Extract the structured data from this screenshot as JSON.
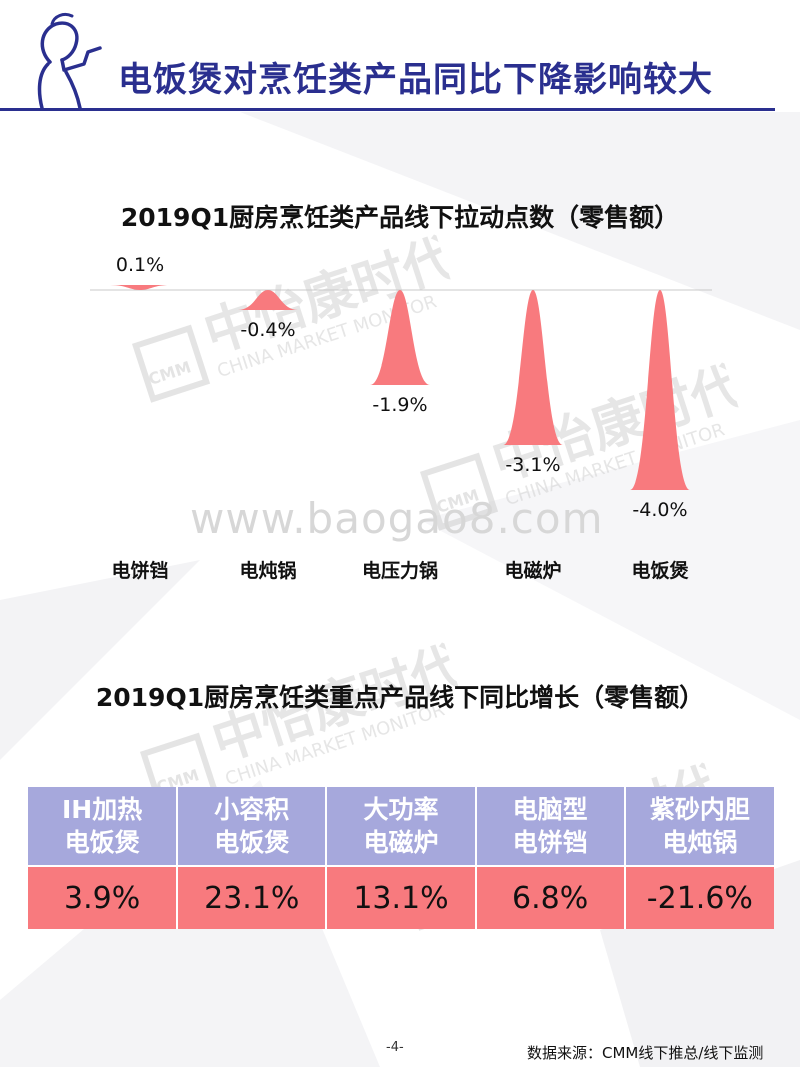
{
  "header": {
    "title": "电饭煲对烹饪类产品同比下降影响较大"
  },
  "chart_data": [
    {
      "type": "bar",
      "title": "2019Q1厨房烹饪类产品线下拉动点数（零售额）",
      "categories": [
        "电饼铛",
        "电炖锅",
        "电压力锅",
        "电磁炉",
        "电饭煲"
      ],
      "values": [
        0.1,
        -0.4,
        -1.9,
        -3.1,
        -4.0
      ],
      "value_labels": [
        "0.1%",
        "-0.4%",
        "-1.9%",
        "-3.1%",
        "-4.0%"
      ],
      "color": "#f87a7e",
      "baseline": 0,
      "ylim": [
        -4.0,
        0.1
      ],
      "grid": false
    },
    {
      "type": "table",
      "title": "2019Q1厨房烹饪类重点产品线下同比增长（零售额）",
      "headers": [
        {
          "line1": "IH加热",
          "line2": "电饭煲"
        },
        {
          "line1": "小容积",
          "line2": "电饭煲"
        },
        {
          "line1": "大功率",
          "line2": "电磁炉"
        },
        {
          "line1": "电脑型",
          "line2": "电饼铛"
        },
        {
          "line1": "紫砂内胆",
          "line2": "电炖锅"
        }
      ],
      "values": [
        "3.9%",
        "23.1%",
        "13.1%",
        "6.8%",
        "-21.6%"
      ],
      "header_color": "#a6a8dc",
      "row_color": "#f87a7e"
    }
  ],
  "watermark": {
    "url": "www.baogao8.com",
    "logo_cn": "中怡康时代",
    "logo_en": "CHINA MARKET MONITOR",
    "logo_mark": "CMM"
  },
  "footer": {
    "page_number": "-4-",
    "source": "数据来源：CMM线下推总/线下监测"
  },
  "colors": {
    "accent": "#2a2f8f",
    "bar": "#f87a7e",
    "table_header": "#a6a8dc"
  }
}
